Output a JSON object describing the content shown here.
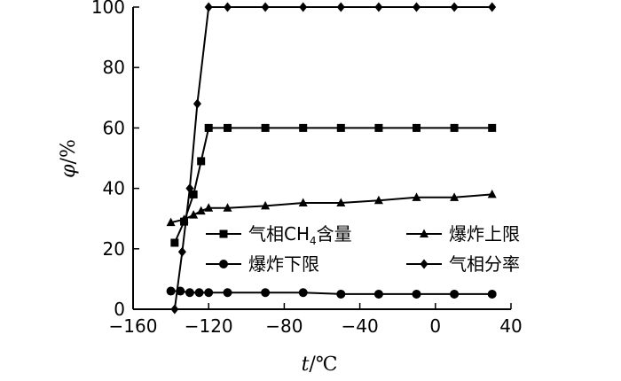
{
  "chart_data": {
    "type": "line",
    "xlabel_var": "t",
    "xlabel_unit": "/℃",
    "ylabel_var": "φ",
    "ylabel_unit": "/%",
    "xlim": [
      -160,
      40
    ],
    "ylim": [
      0,
      100
    ],
    "x_ticks": [
      -160,
      -120,
      -80,
      -40,
      0,
      40
    ],
    "y_ticks": [
      0,
      20,
      40,
      60,
      80,
      100
    ],
    "grid": false,
    "legend_position": "bottom-center",
    "series": [
      {
        "name_main": "气相CH",
        "name_sub": "4",
        "name_tail": "含量",
        "marker": "square",
        "x": [
          -138,
          -133,
          -128,
          -124,
          -120,
          -110,
          -90,
          -70,
          -50,
          -30,
          -10,
          10,
          30
        ],
        "y": [
          22,
          29,
          38,
          49,
          60,
          60,
          60,
          60,
          60,
          60,
          60,
          60,
          60
        ]
      },
      {
        "name": "爆炸上限",
        "marker": "triangle",
        "x": [
          -140,
          -133,
          -128,
          -124,
          -120,
          -110,
          -90,
          -70,
          -50,
          -30,
          -10,
          10,
          30
        ],
        "y": [
          28.7,
          29.7,
          31.2,
          32.5,
          33.5,
          33.5,
          34.2,
          35.2,
          35.2,
          36,
          37,
          37,
          38
        ]
      },
      {
        "name": "爆炸下限",
        "marker": "circle",
        "x": [
          -140,
          -135,
          -130,
          -125,
          -120,
          -110,
          -90,
          -70,
          -50,
          -30,
          -10,
          10,
          30
        ],
        "y": [
          6,
          6,
          5.5,
          5.5,
          5.5,
          5.5,
          5.5,
          5.5,
          5,
          5,
          5,
          5,
          5
        ]
      },
      {
        "name": "气相分率",
        "marker": "diamond",
        "x": [
          -138,
          -134,
          -130,
          -126,
          -120,
          -110,
          -90,
          -70,
          -50,
          -30,
          -10,
          10,
          30
        ],
        "y": [
          0,
          19,
          40,
          68,
          100,
          100,
          100,
          100,
          100,
          100,
          100,
          100,
          100
        ]
      }
    ]
  }
}
